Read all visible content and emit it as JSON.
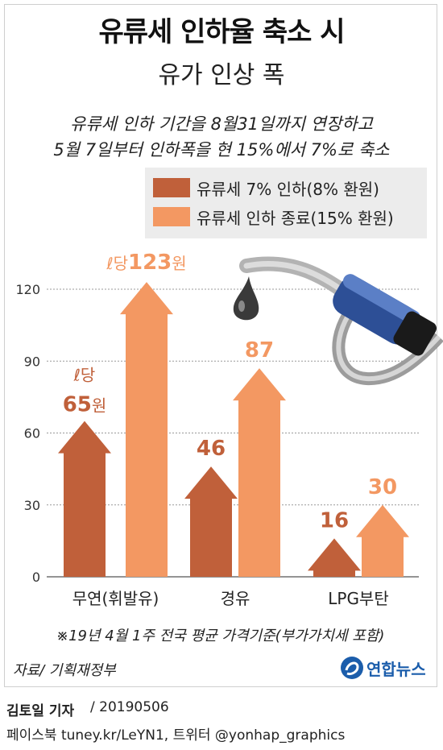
{
  "title": "유류세 인하율 축소 시",
  "subtitle": "유가 인상 폭",
  "description": [
    "유류세 인하 기간을 8월31일까지 연장하고",
    "5월 7일부터 인하폭을 현 15%에서 7%로 축소"
  ],
  "footnote": "※19년 4월 1주 전국 평균 가격기준(부가가치세 포함)",
  "source": "자료/ 기획재정부",
  "logo_text": "연합뉴스",
  "byline_name": "김토일 기자",
  "byline_date": "/ 20190506",
  "social": "페이스북 tuney.kr/LeYN1, 트위터 @yonhap_graphics",
  "chart_data": {
    "type": "bar",
    "categories": [
      "무연(휘발유)",
      "경유",
      "LPG부탄"
    ],
    "series": [
      {
        "name": "유류세 7% 인하(8% 환원)",
        "values": [
          65,
          46,
          16
        ],
        "color": "#c0603a"
      },
      {
        "name": "유류세 인하 종료(15% 환원)",
        "values": [
          123,
          87,
          30
        ],
        "color": "#f39862"
      }
    ],
    "yticks": [
      0,
      30,
      60,
      90,
      120
    ],
    "ylim": [
      0,
      135
    ],
    "unit_prefix": "ℓ당",
    "unit_suffix": "원",
    "grid": true,
    "legend": "top-right"
  }
}
